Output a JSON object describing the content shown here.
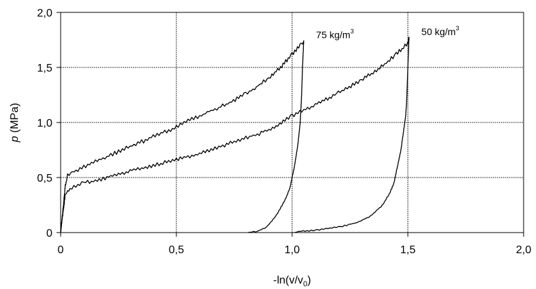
{
  "chart_data": {
    "type": "line",
    "title": "",
    "xlabel": "-ln(v/v",
    "xlabel_sub": "0",
    "xlabel_tail": ")",
    "ylabel_var": "p",
    "ylabel_unit": " (MPa)",
    "xlim": [
      0,
      2
    ],
    "ylim": [
      0,
      2
    ],
    "x_ticks": [
      {
        "value": 0,
        "label": "0"
      },
      {
        "value": 0.5,
        "label": "0,5"
      },
      {
        "value": 1.0,
        "label": "1,0"
      },
      {
        "value": 1.5,
        "label": "1,5"
      },
      {
        "value": 2.0,
        "label": "2,0"
      }
    ],
    "y_ticks": [
      {
        "value": 0,
        "label": "0"
      },
      {
        "value": 0.5,
        "label": "0,5"
      },
      {
        "value": 1.0,
        "label": "1,0"
      },
      {
        "value": 1.5,
        "label": "1,5"
      },
      {
        "value": 2.0,
        "label": "2,0"
      }
    ],
    "grid": true,
    "line_color": "#000000",
    "series": [
      {
        "name": "75 kg/m",
        "name_sup": "3",
        "loading": [
          [
            0,
            0
          ],
          [
            0.01,
            0.2
          ],
          [
            0.02,
            0.42
          ],
          [
            0.03,
            0.52
          ],
          [
            0.05,
            0.55
          ],
          [
            0.1,
            0.6
          ],
          [
            0.2,
            0.69
          ],
          [
            0.3,
            0.78
          ],
          [
            0.4,
            0.87
          ],
          [
            0.5,
            0.96
          ],
          [
            0.6,
            1.06
          ],
          [
            0.7,
            1.15
          ],
          [
            0.8,
            1.26
          ],
          [
            0.9,
            1.4
          ],
          [
            0.95,
            1.5
          ],
          [
            1.0,
            1.62
          ],
          [
            1.04,
            1.72
          ],
          [
            1.05,
            1.74
          ]
        ],
        "unloading": [
          [
            1.05,
            1.74
          ],
          [
            1.045,
            1.5
          ],
          [
            1.04,
            1.2
          ],
          [
            1.035,
            1.0
          ],
          [
            1.025,
            0.8
          ],
          [
            1.01,
            0.6
          ],
          [
            1.0,
            0.5
          ],
          [
            0.99,
            0.4
          ],
          [
            0.97,
            0.3
          ],
          [
            0.93,
            0.15
          ],
          [
            0.89,
            0.05
          ],
          [
            0.85,
            0.01
          ],
          [
            0.81,
            0
          ]
        ]
      },
      {
        "name": "50 kg/m",
        "name_sup": "3",
        "loading": [
          [
            0,
            0
          ],
          [
            0.01,
            0.18
          ],
          [
            0.02,
            0.34
          ],
          [
            0.04,
            0.4
          ],
          [
            0.1,
            0.45
          ],
          [
            0.2,
            0.5
          ],
          [
            0.3,
            0.56
          ],
          [
            0.4,
            0.61
          ],
          [
            0.5,
            0.66
          ],
          [
            0.6,
            0.72
          ],
          [
            0.7,
            0.79
          ],
          [
            0.8,
            0.86
          ],
          [
            0.9,
            0.93
          ],
          [
            1.0,
            1.06
          ],
          [
            1.1,
            1.16
          ],
          [
            1.2,
            1.27
          ],
          [
            1.3,
            1.38
          ],
          [
            1.4,
            1.53
          ],
          [
            1.45,
            1.62
          ],
          [
            1.5,
            1.72
          ],
          [
            1.505,
            1.77
          ]
        ],
        "unloading": [
          [
            1.505,
            1.77
          ],
          [
            1.5,
            1.5
          ],
          [
            1.495,
            1.2
          ],
          [
            1.49,
            1.05
          ],
          [
            1.48,
            0.9
          ],
          [
            1.47,
            0.75
          ],
          [
            1.455,
            0.6
          ],
          [
            1.44,
            0.45
          ],
          [
            1.42,
            0.35
          ],
          [
            1.39,
            0.25
          ],
          [
            1.34,
            0.15
          ],
          [
            1.28,
            0.09
          ],
          [
            1.2,
            0.05
          ],
          [
            1.1,
            0.02
          ],
          [
            1.03,
            0.01
          ],
          [
            1.01,
            0
          ]
        ]
      }
    ]
  }
}
